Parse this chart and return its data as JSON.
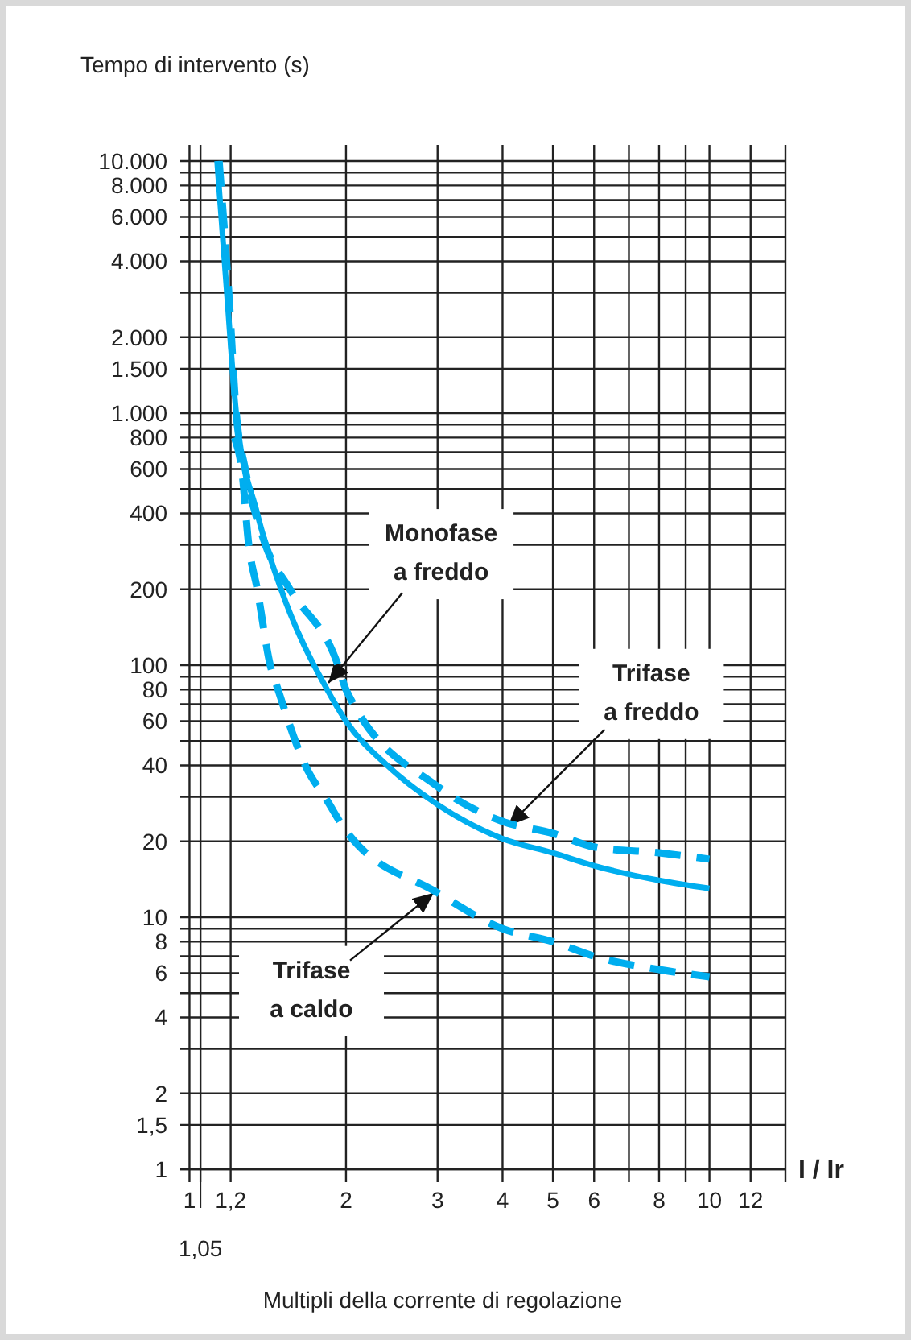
{
  "chart_data": {
    "type": "line",
    "ylabel": "Tempo di intervento  (s)",
    "xlabel": "I / Ir",
    "log": "xy",
    "grid": true,
    "xlim": [
      0.96,
      14
    ],
    "ylim": [
      1,
      10000
    ],
    "xticks": [
      {
        "value": 1,
        "label": "1"
      },
      {
        "value": 1.05,
        "label": null
      },
      {
        "value": 1.2,
        "label": "1,2"
      },
      2,
      3,
      4,
      5,
      6,
      {
        "value": 7,
        "label": null
      },
      8,
      {
        "value": 9,
        "label": null
      },
      10,
      12
    ],
    "yticks": [
      1,
      {
        "value": 1.5,
        "label": "1,5"
      },
      2,
      {
        "value": 3,
        "label": null
      },
      4,
      {
        "value": 5,
        "label": null
      },
      6,
      {
        "value": 7,
        "label": null
      },
      8,
      {
        "value": 9,
        "label": null
      },
      10,
      20,
      {
        "value": 30,
        "label": null
      },
      40,
      {
        "value": 50,
        "label": null
      },
      60,
      {
        "value": 70,
        "label": null
      },
      80,
      {
        "value": 90,
        "label": null
      },
      100,
      200,
      {
        "value": 300,
        "label": null
      },
      400,
      {
        "value": 500,
        "label": null
      },
      600,
      {
        "value": 700,
        "label": null
      },
      800,
      {
        "value": 900,
        "label": null
      },
      {
        "value": 1000,
        "label": "1.000"
      },
      {
        "value": 1500,
        "label": "1.500"
      },
      {
        "value": 2000,
        "label": "2.000"
      },
      {
        "value": 3000,
        "label": null
      },
      {
        "value": 4000,
        "label": "4.000"
      },
      {
        "value": 5000,
        "label": null
      },
      {
        "value": 6000,
        "label": "6.000"
      },
      {
        "value": 7000,
        "label": null
      },
      {
        "value": 8000,
        "label": "8.000"
      },
      {
        "value": 9000,
        "label": null
      },
      {
        "value": 10000,
        "label": "10.000"
      }
    ],
    "series": [
      {
        "color": "#00aeef",
        "line_style": "solid",
        "x": [
          1.13,
          1.18,
          1.23,
          1.35,
          1.5,
          1.84,
          2,
          2.4,
          3,
          4,
          5,
          6,
          8,
          10
        ],
        "values": [
          10000,
          3000,
          1000,
          400,
          200,
          80,
          60,
          40,
          28,
          20.5,
          18,
          16,
          14,
          13
        ]
      },
      {
        "color": "#00aeef",
        "line_style": "dashed",
        "x": [
          1.14,
          1.19,
          1.23,
          1.28,
          1.4,
          1.56,
          1.93,
          2,
          3,
          4,
          5,
          6,
          8,
          10
        ],
        "values": [
          10000,
          3000,
          1000,
          600,
          300,
          200,
          100,
          80,
          33,
          24,
          21.5,
          19,
          18,
          17
        ]
      },
      {
        "color": "#00aeef",
        "line_style": "dashed",
        "x": [
          1.22,
          1.26,
          1.3,
          1.35,
          1.43,
          1.48,
          1.67,
          1.84,
          2,
          3,
          4,
          5,
          6,
          8,
          10
        ],
        "values": [
          800,
          600,
          300,
          200,
          100,
          80,
          40,
          29,
          22,
          12.5,
          9,
          8,
          7,
          6.2,
          5.8
        ]
      }
    ],
    "annotations": [
      {
        "text": "Monofase\na freddo",
        "x": 1.85,
        "y": 85
      },
      {
        "text": "Trifase\na freddo",
        "x": 4.1,
        "y": 23
      },
      {
        "text": "Trifase\na caldo",
        "x": 2.95,
        "y": 12.5
      },
      "1,05",
      "Multipli della corrente di regolazione"
    ]
  }
}
